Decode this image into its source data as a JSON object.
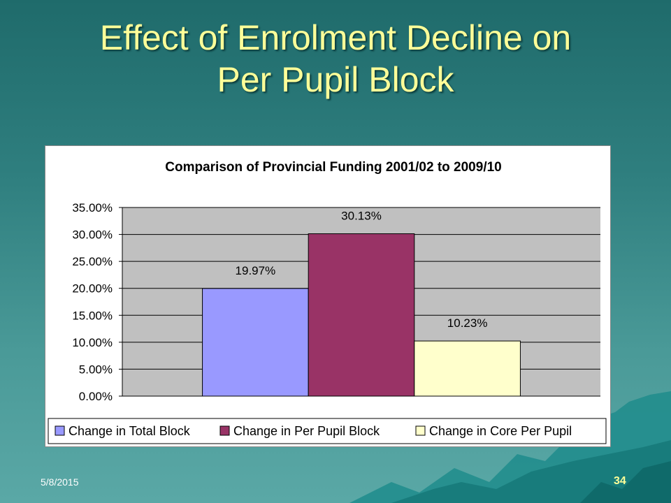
{
  "slide": {
    "title_line1": "Effect of Enrolment Decline on",
    "title_line2": "Per Pupil Block",
    "date": "5/8/2015",
    "page_number": "34"
  },
  "colors": {
    "title": "#ffff99",
    "plot_background": "#c0c0c0",
    "series": [
      "#9999ff",
      "#993366",
      "#ffffcc"
    ]
  },
  "chart_data": {
    "type": "bar",
    "title": "Comparison of Provincial Funding 2001/02 to 2009/10",
    "ylim": [
      0,
      35
    ],
    "yticks": [
      0,
      5,
      10,
      15,
      20,
      25,
      30,
      35
    ],
    "ytick_labels": [
      "0.00%",
      "5.00%",
      "10.00%",
      "15.00%",
      "20.00%",
      "25.00%",
      "30.00%",
      "35.00%"
    ],
    "grid": true,
    "legend_position": "bottom",
    "series": [
      {
        "name": "Change in Total Block",
        "values": [
          19.97
        ],
        "label": "19.97%"
      },
      {
        "name": "Change in Per Pupil Block",
        "values": [
          30.13
        ],
        "label": "30.13%"
      },
      {
        "name": "Change in Core Per Pupil",
        "values": [
          10.23
        ],
        "label": "10.23%"
      }
    ]
  }
}
